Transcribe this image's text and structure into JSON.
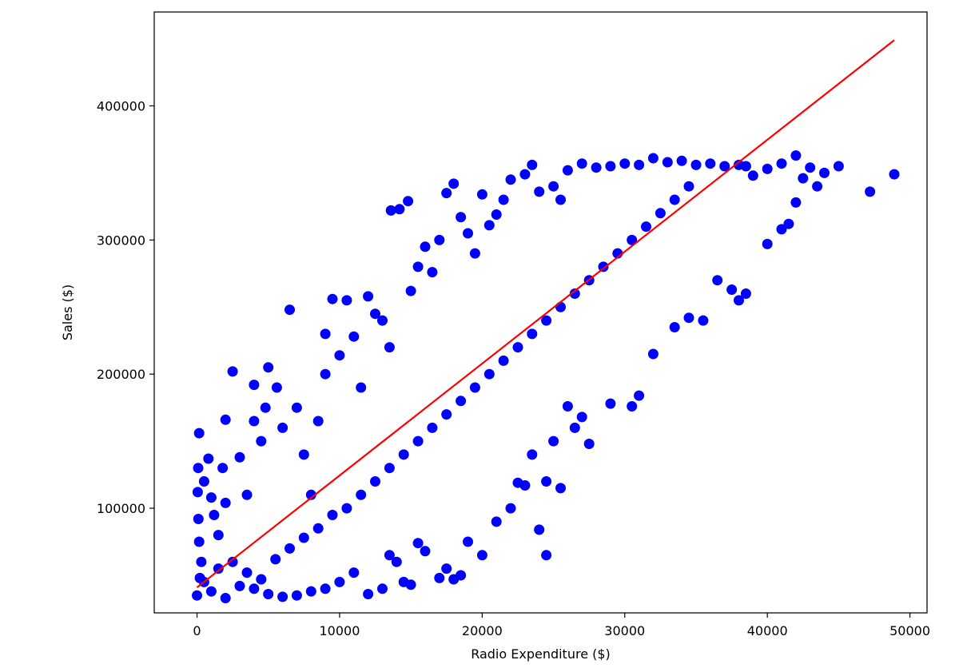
{
  "chart_data": {
    "type": "scatter",
    "title": "",
    "xlabel": "Radio Expenditure ($)",
    "ylabel": "Sales ($)",
    "xlim": [
      -3000,
      51200
    ],
    "ylim": [
      22000,
      470000
    ],
    "x_ticks": [
      0,
      10000,
      20000,
      30000,
      40000,
      50000
    ],
    "y_ticks": [
      100000,
      200000,
      300000,
      400000
    ],
    "grid": false,
    "colors": {
      "points": "#0000ff",
      "fit_line": "#ff0000"
    },
    "series": [
      {
        "name": "",
        "kind": "scatter",
        "points": [
          [
            0,
            35000
          ],
          [
            200,
            48000
          ],
          [
            300,
            60000
          ],
          [
            150,
            75000
          ],
          [
            100,
            92000
          ],
          [
            50,
            112000
          ],
          [
            80,
            130000
          ],
          [
            150,
            156000
          ],
          [
            500,
            120000
          ],
          [
            800,
            137000
          ],
          [
            1000,
            108000
          ],
          [
            1200,
            95000
          ],
          [
            1500,
            80000
          ],
          [
            1800,
            130000
          ],
          [
            2000,
            104000
          ],
          [
            2500,
            202000
          ],
          [
            2000,
            166000
          ],
          [
            3000,
            138000
          ],
          [
            3500,
            110000
          ],
          [
            4000,
            165000
          ],
          [
            4500,
            150000
          ],
          [
            4800,
            175000
          ],
          [
            4000,
            192000
          ],
          [
            5000,
            205000
          ],
          [
            5600,
            190000
          ],
          [
            6500,
            248000
          ],
          [
            6000,
            160000
          ],
          [
            7000,
            175000
          ],
          [
            7500,
            140000
          ],
          [
            8000,
            110000
          ],
          [
            8500,
            165000
          ],
          [
            9000,
            200000
          ],
          [
            9000,
            230000
          ],
          [
            9500,
            256000
          ],
          [
            10000,
            214000
          ],
          [
            10500,
            255000
          ],
          [
            11000,
            228000
          ],
          [
            11500,
            190000
          ],
          [
            12000,
            258000
          ],
          [
            12500,
            245000
          ],
          [
            13000,
            240000
          ],
          [
            13500,
            220000
          ],
          [
            13600,
            322000
          ],
          [
            14200,
            323000
          ],
          [
            14800,
            329000
          ],
          [
            15000,
            262000
          ],
          [
            15500,
            280000
          ],
          [
            16000,
            295000
          ],
          [
            16500,
            276000
          ],
          [
            17000,
            300000
          ],
          [
            17500,
            335000
          ],
          [
            18000,
            342000
          ],
          [
            18500,
            317000
          ],
          [
            19000,
            305000
          ],
          [
            19500,
            290000
          ],
          [
            20000,
            334000
          ],
          [
            20500,
            311000
          ],
          [
            21000,
            319000
          ],
          [
            21500,
            330000
          ],
          [
            22000,
            345000
          ],
          [
            23000,
            349000
          ],
          [
            23500,
            356000
          ],
          [
            24000,
            336000
          ],
          [
            25000,
            340000
          ],
          [
            25500,
            330000
          ],
          [
            26000,
            352000
          ],
          [
            27000,
            357000
          ],
          [
            28000,
            354000
          ],
          [
            29000,
            355000
          ],
          [
            30000,
            357000
          ],
          [
            31000,
            356000
          ],
          [
            32000,
            361000
          ],
          [
            33000,
            358000
          ],
          [
            34000,
            359000
          ],
          [
            35000,
            356000
          ],
          [
            36000,
            357000
          ],
          [
            37000,
            355000
          ],
          [
            38000,
            356000
          ],
          [
            38500,
            355000
          ],
          [
            39000,
            348000
          ],
          [
            40000,
            353000
          ],
          [
            41000,
            357000
          ],
          [
            42000,
            363000
          ],
          [
            42500,
            346000
          ],
          [
            43000,
            354000
          ],
          [
            43500,
            340000
          ],
          [
            44000,
            350000
          ],
          [
            45000,
            355000
          ],
          [
            47200,
            336000
          ],
          [
            48900,
            349000
          ],
          [
            40000,
            297000
          ],
          [
            41000,
            308000
          ],
          [
            42000,
            328000
          ],
          [
            41500,
            312000
          ],
          [
            38000,
            255000
          ],
          [
            38500,
            260000
          ],
          [
            37500,
            263000
          ],
          [
            36500,
            270000
          ],
          [
            35500,
            240000
          ],
          [
            34500,
            242000
          ],
          [
            33500,
            235000
          ],
          [
            32000,
            215000
          ],
          [
            31000,
            184000
          ],
          [
            30500,
            176000
          ],
          [
            29000,
            178000
          ],
          [
            27500,
            148000
          ],
          [
            27000,
            168000
          ],
          [
            26500,
            160000
          ],
          [
            26000,
            176000
          ],
          [
            25000,
            150000
          ],
          [
            24500,
            120000
          ],
          [
            25500,
            115000
          ],
          [
            24000,
            84000
          ],
          [
            24500,
            65000
          ],
          [
            20000,
            65000
          ],
          [
            21000,
            90000
          ],
          [
            22000,
            100000
          ],
          [
            22500,
            119000
          ],
          [
            23000,
            117000
          ],
          [
            23500,
            140000
          ],
          [
            19000,
            75000
          ],
          [
            18500,
            50000
          ],
          [
            18000,
            47000
          ],
          [
            17500,
            55000
          ],
          [
            17000,
            48000
          ],
          [
            16000,
            68000
          ],
          [
            15500,
            74000
          ],
          [
            15000,
            43000
          ],
          [
            14500,
            45000
          ],
          [
            14000,
            60000
          ],
          [
            13500,
            65000
          ],
          [
            13000,
            40000
          ],
          [
            12000,
            36000
          ],
          [
            11000,
            52000
          ],
          [
            10000,
            45000
          ],
          [
            9000,
            40000
          ],
          [
            8000,
            38000
          ],
          [
            7000,
            35000
          ],
          [
            6000,
            34000
          ],
          [
            5000,
            36000
          ],
          [
            4000,
            40000
          ],
          [
            3000,
            42000
          ],
          [
            2000,
            33000
          ],
          [
            1000,
            38000
          ],
          [
            500,
            45000
          ],
          [
            1500,
            55000
          ],
          [
            2500,
            60000
          ],
          [
            3500,
            52000
          ],
          [
            4500,
            47000
          ],
          [
            5500,
            62000
          ],
          [
            6500,
            70000
          ],
          [
            7500,
            78000
          ],
          [
            8500,
            85000
          ],
          [
            9500,
            95000
          ],
          [
            10500,
            100000
          ],
          [
            11500,
            110000
          ],
          [
            12500,
            120000
          ],
          [
            13500,
            130000
          ],
          [
            14500,
            140000
          ],
          [
            15500,
            150000
          ],
          [
            16500,
            160000
          ],
          [
            17500,
            170000
          ],
          [
            18500,
            180000
          ],
          [
            19500,
            190000
          ],
          [
            20500,
            200000
          ],
          [
            21500,
            210000
          ],
          [
            22500,
            220000
          ],
          [
            23500,
            230000
          ],
          [
            24500,
            240000
          ],
          [
            25500,
            250000
          ],
          [
            26500,
            260000
          ],
          [
            27500,
            270000
          ],
          [
            28500,
            280000
          ],
          [
            29500,
            290000
          ],
          [
            30500,
            300000
          ],
          [
            31500,
            310000
          ],
          [
            32500,
            320000
          ],
          [
            33500,
            330000
          ],
          [
            34500,
            340000
          ]
        ]
      },
      {
        "name": "",
        "kind": "line",
        "points": [
          [
            0,
            41000
          ],
          [
            48900,
            449000
          ]
        ]
      }
    ]
  }
}
